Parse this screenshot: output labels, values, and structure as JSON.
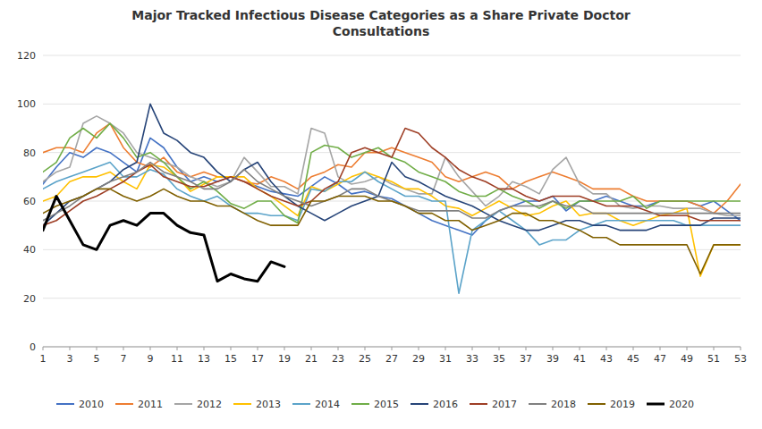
{
  "chart_data": {
    "type": "line",
    "title": "Major Tracked Infectious Disease Categories as a Share Private Doctor\nConsultations",
    "x": [
      1,
      2,
      3,
      4,
      5,
      6,
      7,
      8,
      9,
      10,
      11,
      12,
      13,
      14,
      15,
      16,
      17,
      18,
      19,
      20,
      21,
      22,
      23,
      24,
      25,
      26,
      27,
      28,
      29,
      30,
      31,
      32,
      33,
      34,
      35,
      36,
      37,
      38,
      39,
      40,
      41,
      42,
      43,
      44,
      45,
      46,
      47,
      48,
      49,
      50,
      51,
      52,
      53
    ],
    "xlim": [
      1,
      53
    ],
    "ylim": [
      0,
      120
    ],
    "xticks": [
      1,
      3,
      5,
      7,
      9,
      11,
      13,
      15,
      17,
      19,
      21,
      23,
      25,
      27,
      29,
      31,
      33,
      35,
      37,
      39,
      41,
      43,
      45,
      47,
      49,
      51,
      53
    ],
    "yticks": [
      0,
      20,
      40,
      60,
      80,
      100,
      120
    ],
    "grid": true,
    "legend": "bottom",
    "series": [
      {
        "name": "2010",
        "color": "#4472C4",
        "values": [
          67,
          74,
          80,
          78,
          82,
          80,
          76,
          72,
          86,
          82,
          74,
          68,
          70,
          68,
          70,
          68,
          66,
          64,
          63,
          62,
          66,
          70,
          67,
          63,
          64,
          62,
          61,
          58,
          55,
          52,
          50,
          48,
          46,
          52,
          56,
          58,
          60,
          60,
          62,
          56,
          60,
          60,
          62,
          60,
          58,
          58,
          60,
          60,
          60,
          58,
          60,
          56,
          52
        ]
      },
      {
        "name": "2011",
        "color": "#ED7D31",
        "values": [
          80,
          82,
          82,
          80,
          88,
          92,
          82,
          76,
          74,
          78,
          72,
          70,
          72,
          70,
          70,
          68,
          67,
          70,
          68,
          65,
          70,
          72,
          75,
          74,
          80,
          80,
          82,
          80,
          78,
          76,
          70,
          68,
          70,
          72,
          70,
          65,
          68,
          70,
          72,
          70,
          68,
          65,
          65,
          65,
          62,
          60,
          60,
          60,
          60,
          58,
          55,
          60,
          67
        ]
      },
      {
        "name": "2012",
        "color": "#A5A5A5",
        "values": [
          68,
          72,
          74,
          92,
          95,
          92,
          88,
          80,
          78,
          76,
          74,
          70,
          68,
          66,
          68,
          78,
          72,
          66,
          66,
          63,
          90,
          88,
          70,
          67,
          68,
          70,
          67,
          65,
          63,
          63,
          78,
          70,
          64,
          58,
          62,
          68,
          66,
          63,
          73,
          78,
          67,
          63,
          63,
          58,
          57,
          58,
          58,
          57,
          57,
          57,
          55,
          54,
          54
        ]
      },
      {
        "name": "2013",
        "color": "#FFC000",
        "values": [
          60,
          62,
          68,
          70,
          70,
          72,
          68,
          65,
          75,
          74,
          70,
          64,
          67,
          70,
          70,
          70,
          65,
          62,
          58,
          54,
          66,
          64,
          67,
          70,
          72,
          70,
          68,
          65,
          65,
          62,
          58,
          57,
          54,
          57,
          60,
          57,
          54,
          55,
          58,
          60,
          54,
          55,
          55,
          52,
          50,
          52,
          54,
          55,
          57,
          29,
          42,
          42,
          42
        ]
      },
      {
        "name": "2014",
        "color": "#5BA3C9",
        "values": [
          65,
          68,
          70,
          72,
          74,
          76,
          70,
          70,
          73,
          71,
          65,
          62,
          60,
          62,
          58,
          55,
          55,
          54,
          54,
          52,
          65,
          64,
          68,
          68,
          72,
          68,
          65,
          62,
          62,
          60,
          60,
          22,
          48,
          52,
          56,
          52,
          48,
          42,
          44,
          44,
          48,
          50,
          52,
          52,
          52,
          52,
          52,
          52,
          50,
          50,
          50,
          50,
          50
        ]
      },
      {
        "name": "2015",
        "color": "#70AD47",
        "values": [
          72,
          76,
          86,
          90,
          86,
          92,
          86,
          78,
          80,
          76,
          70,
          65,
          68,
          64,
          59,
          57,
          60,
          60,
          54,
          51,
          80,
          83,
          82,
          78,
          80,
          82,
          78,
          76,
          72,
          70,
          68,
          64,
          62,
          62,
          65,
          62,
          60,
          57,
          60,
          57,
          60,
          60,
          60,
          60,
          62,
          57,
          60,
          60,
          60,
          60,
          60,
          60,
          60
        ]
      },
      {
        "name": "2016",
        "color": "#264478",
        "values": [
          50,
          55,
          60,
          62,
          65,
          68,
          73,
          76,
          100,
          88,
          85,
          80,
          78,
          72,
          68,
          73,
          76,
          68,
          62,
          58,
          55,
          52,
          55,
          58,
          60,
          62,
          76,
          70,
          68,
          65,
          62,
          60,
          58,
          55,
          52,
          50,
          48,
          48,
          50,
          52,
          52,
          50,
          50,
          48,
          48,
          48,
          50,
          50,
          50,
          50,
          53,
          53,
          53
        ]
      },
      {
        "name": "2017",
        "color": "#9E3E25",
        "values": [
          50,
          52,
          56,
          60,
          62,
          65,
          68,
          72,
          75,
          70,
          68,
          66,
          66,
          68,
          70,
          68,
          65,
          62,
          60,
          58,
          60,
          65,
          68,
          80,
          82,
          80,
          78,
          90,
          88,
          82,
          78,
          73,
          70,
          68,
          65,
          65,
          62,
          60,
          62,
          62,
          62,
          60,
          58,
          58,
          58,
          56,
          54,
          54,
          54,
          52,
          52,
          52,
          52
        ]
      },
      {
        "name": "2018",
        "color": "#808080",
        "values": [
          52,
          55,
          58,
          62,
          65,
          68,
          70,
          72,
          76,
          72,
          70,
          68,
          65,
          65,
          68,
          73,
          68,
          65,
          62,
          60,
          58,
          60,
          62,
          65,
          65,
          62,
          60,
          58,
          56,
          56,
          56,
          56,
          53,
          53,
          56,
          58,
          58,
          58,
          60,
          58,
          58,
          55,
          55,
          55,
          55,
          55,
          55,
          55,
          55,
          55,
          55,
          55,
          55
        ]
      },
      {
        "name": "2019",
        "color": "#806000",
        "values": [
          55,
          58,
          60,
          62,
          65,
          65,
          62,
          60,
          62,
          65,
          62,
          60,
          60,
          58,
          58,
          55,
          52,
          50,
          50,
          50,
          60,
          60,
          62,
          62,
          62,
          60,
          60,
          58,
          55,
          55,
          52,
          52,
          48,
          50,
          52,
          55,
          55,
          52,
          52,
          50,
          48,
          45,
          45,
          42,
          42,
          42,
          42,
          42,
          42,
          30,
          42,
          42,
          42
        ]
      },
      {
        "name": "2020",
        "color": "#000000",
        "values": [
          48,
          62,
          52,
          42,
          40,
          50,
          52,
          50,
          55,
          55,
          50,
          47,
          46,
          27,
          30,
          28,
          27,
          35,
          33,
          null,
          null,
          null,
          null,
          null,
          null,
          null,
          null,
          null,
          null,
          null,
          null,
          null,
          null,
          null,
          null,
          null,
          null,
          null,
          null,
          null,
          null,
          null,
          null,
          null,
          null,
          null,
          null,
          null,
          null,
          null,
          null,
          null,
          null
        ]
      }
    ]
  }
}
